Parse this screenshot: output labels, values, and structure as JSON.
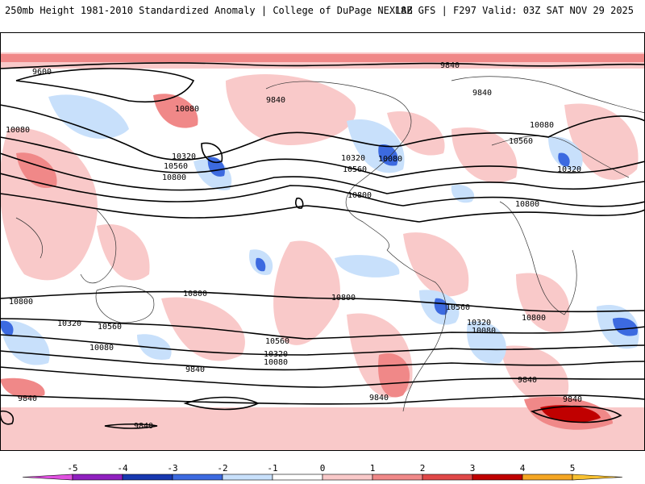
{
  "header": {
    "title": "250mb Height 1981-2010 Standardized Anomaly | College of DuPage NEXLAB",
    "run": "18Z GFS | F297 Valid: 03Z SAT NOV 29 2025"
  },
  "contours": [
    {
      "label": "9600"
    },
    {
      "label": "9840"
    },
    {
      "label": "10080"
    },
    {
      "label": "9840"
    },
    {
      "label": "10320"
    },
    {
      "label": "10560"
    },
    {
      "label": "10800"
    },
    {
      "label": "10080"
    },
    {
      "label": "10320"
    },
    {
      "label": "10560"
    },
    {
      "label": "10080"
    },
    {
      "label": "10800"
    },
    {
      "label": "9840"
    },
    {
      "label": "10080"
    },
    {
      "label": "10560"
    },
    {
      "label": "10320"
    },
    {
      "label": "10800"
    },
    {
      "label": "10800"
    },
    {
      "label": "10800"
    },
    {
      "label": "10320"
    },
    {
      "label": "10560"
    },
    {
      "label": "10080"
    },
    {
      "label": "10800"
    },
    {
      "label": "10560"
    },
    {
      "label": "10320"
    },
    {
      "label": "10080"
    },
    {
      "label": "9840"
    },
    {
      "label": "10560"
    },
    {
      "label": "10320"
    },
    {
      "label": "10080"
    },
    {
      "label": "10800"
    },
    {
      "label": "9840"
    },
    {
      "label": "9840"
    },
    {
      "label": "9840"
    },
    {
      "label": "9840"
    },
    {
      "label": "9840"
    }
  ],
  "colorbar": {
    "ticks": [
      "-5",
      "-4",
      "-3",
      "-2",
      "-1",
      "0",
      "1",
      "2",
      "3",
      "4",
      "5"
    ],
    "colors": [
      "#e050e0",
      "#9020c0",
      "#1838b0",
      "#3c6ae0",
      "#c8e0fb",
      "#ffffff",
      "#f9c9c9",
      "#f08888",
      "#e04848",
      "#c00000",
      "#f5a623",
      "#f7c030"
    ]
  }
}
